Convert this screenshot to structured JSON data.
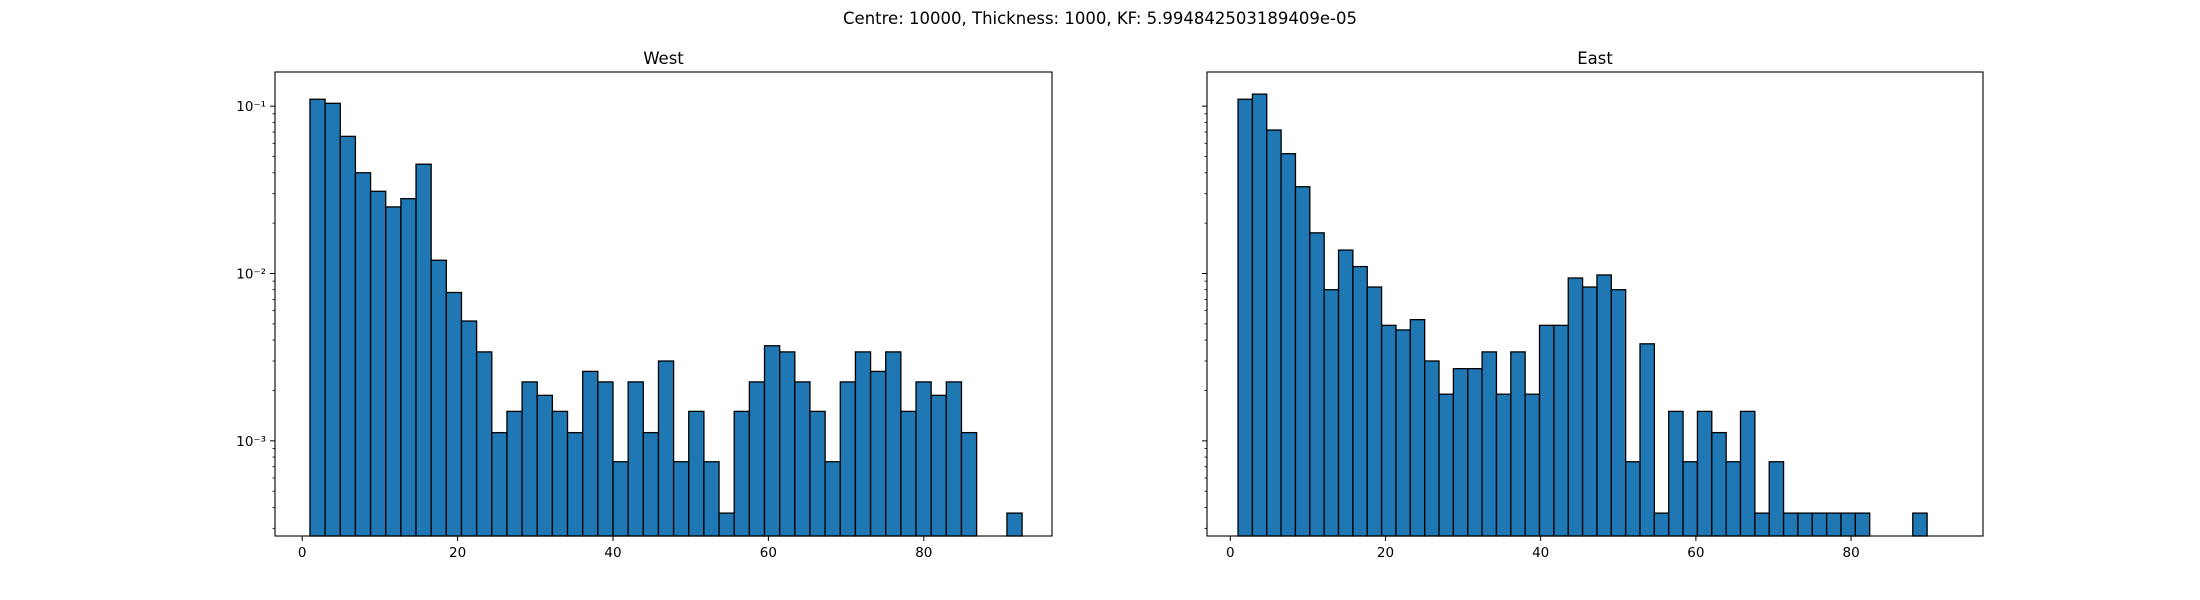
{
  "suptitle": "Centre: 10000, Thickness: 1000, KF: 5.994842503189409e-05",
  "chart_data": [
    {
      "type": "bar",
      "title": "West",
      "xlabel": "",
      "ylabel": "",
      "yscale": "log",
      "xlim": [
        -3.5,
        96.5
      ],
      "ylim": [
        0.00027,
        0.16
      ],
      "xticks": [
        0,
        20,
        40,
        60,
        80
      ],
      "yticks": [
        0.001,
        0.01,
        0.1
      ],
      "ytick_labels": [
        "10⁻³",
        "10⁻²",
        "10⁻¹"
      ],
      "bin_start": 1,
      "bin_width": 1.95,
      "color": "#1f77b4",
      "edgecolor": "#000000",
      "grid": false,
      "values": [
        0.11,
        0.104,
        0.066,
        0.04,
        0.031,
        0.025,
        0.028,
        0.045,
        0.012,
        0.0077,
        0.0052,
        0.0034,
        0.00112,
        0.0015,
        0.00225,
        0.00187,
        0.0015,
        0.00112,
        0.0026,
        0.00225,
        0.00075,
        0.00225,
        0.00112,
        0.003,
        0.00075,
        0.0015,
        0.00075,
        0.00037,
        0.0015,
        0.00225,
        0.0037,
        0.0034,
        0.00225,
        0.0015,
        0.00075,
        0.00225,
        0.0034,
        0.0026,
        0.0034,
        0.0015,
        0.00225,
        0.00187,
        0.00225,
        0.00112,
        0,
        0,
        0.00037
      ]
    },
    {
      "type": "bar",
      "title": "East",
      "xlabel": "",
      "ylabel": "",
      "yscale": "log",
      "xlim": [
        -3.0,
        97.0
      ],
      "ylim": [
        0.00027,
        0.16
      ],
      "xticks": [
        0,
        20,
        40,
        60,
        80
      ],
      "yticks": [
        0.001,
        0.01,
        0.1
      ],
      "ytick_labels": [],
      "bin_start": 1,
      "bin_width": 1.85,
      "color": "#1f77b4",
      "edgecolor": "#000000",
      "grid": false,
      "values": [
        0.11,
        0.118,
        0.072,
        0.052,
        0.033,
        0.0175,
        0.008,
        0.0138,
        0.011,
        0.0083,
        0.0049,
        0.0046,
        0.0053,
        0.003,
        0.0019,
        0.0027,
        0.0027,
        0.0034,
        0.0019,
        0.0034,
        0.0019,
        0.0049,
        0.0049,
        0.0094,
        0.0083,
        0.0098,
        0.008,
        0.00075,
        0.0038,
        0.00037,
        0.0015,
        0.00075,
        0.0015,
        0.00112,
        0.00075,
        0.0015,
        0.00037,
        0.00075,
        0.00037,
        0.00037,
        0.00037,
        0.00037,
        0.00037,
        0.00037,
        0,
        0,
        0,
        0.00037
      ]
    }
  ]
}
